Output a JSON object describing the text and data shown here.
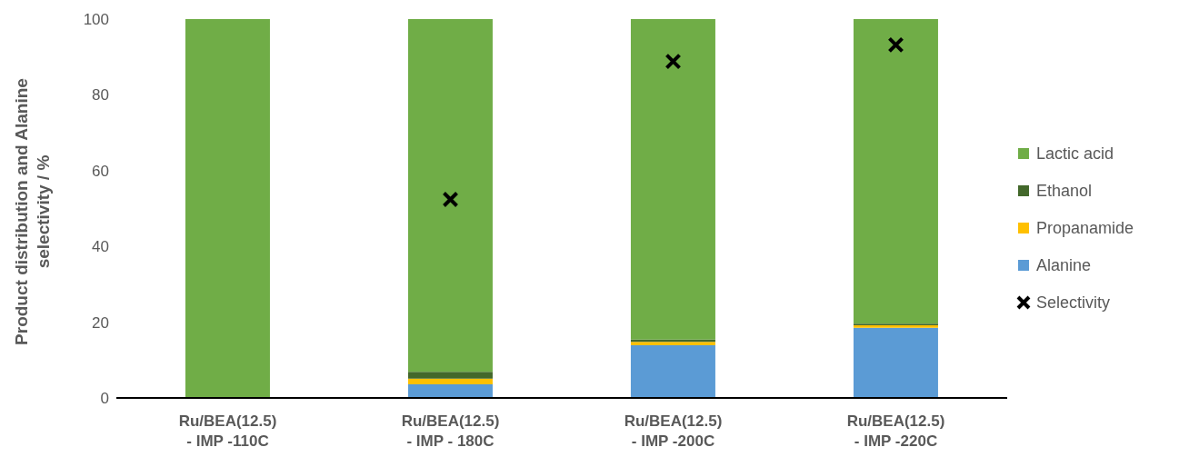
{
  "chart_data": {
    "type": "bar",
    "stacked": true,
    "ylabel": "Product distribution and Alanine selectivity / %",
    "categories": [
      "Ru/BEA(12.5) - IMP -110C",
      "Ru/BEA(12.5) - IMP - 180C",
      "Ru/BEA(12.5) - IMP -200C",
      "Ru/BEA(12.5) - IMP -220C"
    ],
    "series": [
      {
        "name": "Alanine",
        "color": "#5b9bd5",
        "values": [
          0,
          3.6,
          13.9,
          18.5
        ]
      },
      {
        "name": "Propanamide",
        "color": "#ffc000",
        "values": [
          0,
          1.5,
          0.9,
          0.7
        ]
      },
      {
        "name": "Ethanol",
        "color": "#43682b",
        "values": [
          0,
          1.8,
          0.6,
          0.4
        ]
      },
      {
        "name": "Lactic acid",
        "color": "#70ad47",
        "values": [
          100,
          93.1,
          84.6,
          80.4
        ]
      },
      {
        "name": "Selectivity",
        "type": "scatter",
        "color": "#000000",
        "marker": "cross",
        "values": [
          null,
          52.4,
          88.8,
          93.2
        ]
      }
    ],
    "ylim": [
      0,
      100
    ],
    "yticks": [
      0,
      20,
      40,
      60,
      80,
      100
    ],
    "legend": "right"
  }
}
